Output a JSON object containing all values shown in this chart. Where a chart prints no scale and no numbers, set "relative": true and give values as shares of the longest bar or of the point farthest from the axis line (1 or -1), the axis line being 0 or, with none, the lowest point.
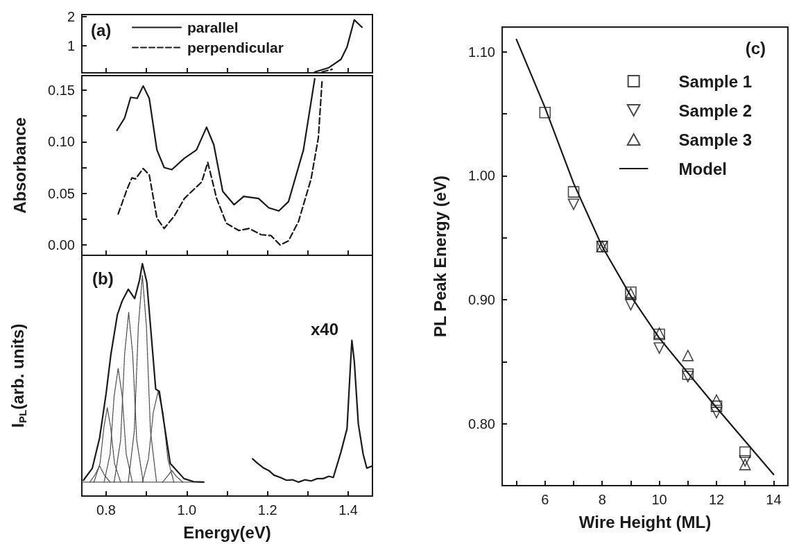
{
  "chart_data": [
    {
      "type": "line",
      "title": "(a)",
      "xlim": [
        0.74,
        1.46
      ],
      "xticks": [
        {
          "value": 0.8,
          "label": null
        },
        {
          "value": 0.9,
          "label": null
        },
        {
          "value": 1.0,
          "label": null
        },
        {
          "value": 1.1,
          "label": null
        },
        {
          "value": 1.2,
          "label": null
        },
        {
          "value": 1.3,
          "label": null
        },
        {
          "value": 1.4,
          "label": null
        }
      ],
      "ylim": [
        0.08,
        2.06
      ],
      "yticks": [
        1,
        2
      ],
      "tick_labels": "y",
      "legend": "top left",
      "series": [
        {
          "name": "parallel",
          "color": "#1a1a1a",
          "line_style": "solid",
          "marker": "none",
          "x": [
            1.317,
            1.351,
            1.382,
            1.397,
            1.415,
            1.434
          ],
          "values": [
            0.11,
            0.25,
            0.54,
            0.96,
            1.88,
            1.63
          ]
        },
        {
          "name": "perpendicular",
          "color": "#1a1a1a",
          "line_style": "dashed",
          "marker": "none",
          "x": [
            1.335,
            1.36
          ],
          "values": [
            0.11,
            0.2
          ]
        }
      ]
    },
    {
      "type": "line",
      "ylabel": "Absorbance",
      "xlim": [
        0.74,
        1.46
      ],
      "xticks": [
        {
          "value": 0.8,
          "label": null
        },
        {
          "value": 0.9,
          "label": null
        },
        {
          "value": 1.0,
          "label": null
        },
        {
          "value": 1.1,
          "label": null
        },
        {
          "value": 1.2,
          "label": null
        },
        {
          "value": 1.3,
          "label": null
        },
        {
          "value": 1.4,
          "label": null
        }
      ],
      "ylim": [
        -0.01,
        0.164
      ],
      "yticks": [
        {
          "value": 0,
          "label": "0.00"
        },
        {
          "value": 0.025,
          "label": null
        },
        {
          "value": 0.05,
          "label": "0.05"
        },
        {
          "value": 0.075,
          "label": null
        },
        {
          "value": 0.1,
          "label": "0.10"
        },
        {
          "value": 0.125,
          "label": null
        },
        {
          "value": 0.15,
          "label": "0.15"
        }
      ],
      "tick_labels": "y",
      "series": [
        {
          "color": "#1a1a1a",
          "line_style": "solid",
          "marker": "none",
          "x": [
            0.827,
            0.846,
            0.861,
            0.877,
            0.892,
            0.907,
            0.926,
            0.944,
            0.963,
            0.994,
            1.024,
            1.049,
            1.067,
            1.089,
            1.117,
            1.141,
            1.178,
            1.203,
            1.228,
            1.252,
            1.289,
            1.317
          ],
          "values": [
            0.111,
            0.123,
            0.143,
            0.142,
            0.154,
            0.142,
            0.092,
            0.075,
            0.073,
            0.084,
            0.092,
            0.114,
            0.097,
            0.052,
            0.039,
            0.047,
            0.045,
            0.036,
            0.033,
            0.042,
            0.092,
            0.161
          ]
        },
        {
          "color": "#1a1a1a",
          "line_style": "dashed",
          "marker": "none",
          "x": [
            0.83,
            0.852,
            0.864,
            0.873,
            0.892,
            0.907,
            0.926,
            0.944,
            0.969,
            0.994,
            1.018,
            1.037,
            1.052,
            1.074,
            1.098,
            1.129,
            1.154,
            1.184,
            1.209,
            1.231,
            1.252,
            1.277,
            1.308,
            1.326,
            1.335
          ],
          "values": [
            0.03,
            0.054,
            0.065,
            0.064,
            0.074,
            0.068,
            0.026,
            0.016,
            0.028,
            0.045,
            0.054,
            0.061,
            0.08,
            0.045,
            0.021,
            0.014,
            0.016,
            0.01,
            0.009,
            0.0,
            0.004,
            0.023,
            0.064,
            0.104,
            0.158
          ]
        }
      ]
    },
    {
      "type": "line",
      "title": "(b)",
      "relative": true,
      "xlabel": "Energy(eV)",
      "ylabel": "I$_{PL}$(arb. units)",
      "xlim": [
        0.74,
        1.46
      ],
      "xticks": [
        0.8,
        {
          "value": 0.9,
          "label": null
        },
        {
          "value": 1.0,
          "label": "1.0"
        },
        {
          "value": 1.1,
          "label": null
        },
        1.2,
        {
          "value": 1.3,
          "label": null
        },
        1.4
      ],
      "tick_labels": "x",
      "annotations": [
        "x40"
      ],
      "series": [
        {
          "color": "#1a1a1a",
          "line_style": "solid",
          "marker": "none",
          "x": [
            0.744,
            0.766,
            0.784,
            0.8,
            0.812,
            0.828,
            0.84,
            0.855,
            0.871,
            0.883,
            0.89,
            0.901,
            0.914,
            0.923,
            0.932,
            0.944,
            0.959,
            0.975,
            0.993,
            1.017,
            1.042
          ],
          "values": [
            0.068,
            0.12,
            0.25,
            0.44,
            0.61,
            0.78,
            0.84,
            0.89,
            0.85,
            0.93,
            1.0,
            0.92,
            0.65,
            0.46,
            0.45,
            0.31,
            0.14,
            0.11,
            0.075,
            0.062,
            0.06
          ]
        },
        {
          "color": "#1a1a1a",
          "line_style": "solid",
          "marker": "none",
          "x": [
            1.163,
            1.176,
            1.191,
            1.203,
            1.216,
            1.232,
            1.247,
            1.262,
            1.277,
            1.293,
            1.308,
            1.323,
            1.338,
            1.352,
            1.363,
            1.382,
            1.397,
            1.406,
            1.409,
            1.415,
            1.425,
            1.437,
            1.446,
            1.46
          ],
          "values": [
            0.16,
            0.14,
            0.12,
            0.11,
            0.09,
            0.08,
            0.068,
            0.07,
            0.06,
            0.07,
            0.065,
            0.075,
            0.075,
            0.085,
            0.08,
            0.19,
            0.29,
            0.58,
            0.67,
            0.58,
            0.31,
            0.18,
            0.12,
            0.13
          ]
        },
        {
          "color": "#444444",
          "line_style": "dotted",
          "marker": "none",
          "x": [
            0.74,
            1.04
          ],
          "values": [
            0.06,
            0.06
          ]
        },
        {
          "color": "#444444",
          "line_style": "dotted",
          "marker": "none",
          "x": [
            0.76,
            0.772,
            0.784,
            0.796,
            0.81
          ],
          "values": [
            0.06,
            0.09,
            0.13,
            0.09,
            0.06
          ]
        },
        {
          "color": "#444444",
          "line_style": "dotted",
          "marker": "none",
          "x": [
            0.77,
            0.785,
            0.795,
            0.803,
            0.811,
            0.821,
            0.836
          ],
          "values": [
            0.06,
            0.14,
            0.3,
            0.38,
            0.3,
            0.14,
            0.06
          ]
        },
        {
          "color": "#444444",
          "line_style": "dotted",
          "marker": "none",
          "x": [
            0.795,
            0.81,
            0.82,
            0.83,
            0.84,
            0.85,
            0.865
          ],
          "values": [
            0.06,
            0.18,
            0.43,
            0.55,
            0.43,
            0.18,
            0.06
          ]
        },
        {
          "color": "#444444",
          "line_style": "dotted",
          "marker": "none",
          "x": [
            0.82,
            0.836,
            0.846,
            0.856,
            0.866,
            0.876,
            0.892
          ],
          "values": [
            0.06,
            0.24,
            0.61,
            0.79,
            0.61,
            0.24,
            0.06
          ]
        },
        {
          "color": "#444444",
          "line_style": "dotted",
          "marker": "none",
          "x": [
            0.855,
            0.87,
            0.88,
            0.89,
            0.9,
            0.91,
            0.925
          ],
          "values": [
            0.06,
            0.28,
            0.73,
            0.95,
            0.73,
            0.28,
            0.06
          ]
        },
        {
          "color": "#444444",
          "line_style": "dotted",
          "marker": "none",
          "x": [
            0.89,
            0.905,
            0.917,
            0.929,
            0.941,
            0.953,
            0.968
          ],
          "values": [
            0.06,
            0.16,
            0.36,
            0.45,
            0.36,
            0.16,
            0.06
          ]
        },
        {
          "color": "#444444",
          "line_style": "dotted",
          "marker": "none",
          "x": [
            0.94,
            0.952,
            0.963,
            0.974,
            0.99
          ],
          "values": [
            0.06,
            0.085,
            0.11,
            0.085,
            0.06
          ]
        }
      ]
    },
    {
      "type": "scatter",
      "title": "(c)",
      "xlabel": "Wire Height (ML)",
      "ylabel": "PL Peak Energy (eV)",
      "xlim": [
        4.5,
        14.5
      ],
      "xticks": [
        {
          "value": 5,
          "label": null
        },
        6,
        {
          "value": 7,
          "label": null
        },
        8,
        {
          "value": 9,
          "label": null
        },
        10,
        {
          "value": 11,
          "label": null
        },
        12,
        {
          "value": 13,
          "label": null
        },
        14
      ],
      "ylim": [
        0.75,
        1.12
      ],
      "yticks": [
        {
          "value": 0.8,
          "label": "0.80"
        },
        {
          "value": 0.85,
          "label": null
        },
        {
          "value": 0.9,
          "label": "0.90"
        },
        {
          "value": 0.95,
          "label": null
        },
        {
          "value": 1.0,
          "label": "1.00"
        },
        {
          "value": 1.05,
          "label": null
        },
        {
          "value": 1.1,
          "label": "1.10"
        }
      ],
      "legend": "top right",
      "series": [
        {
          "name": "Sample 1",
          "color": "#1a1a1a",
          "marker": "square",
          "x": [
            6,
            7,
            8,
            9,
            10,
            11,
            12,
            13
          ],
          "values": [
            1.051,
            0.987,
            0.943,
            0.906,
            0.872,
            0.84,
            0.814,
            0.777
          ]
        },
        {
          "name": "Sample 2",
          "color": "#1a1a1a",
          "marker": "triangle-down",
          "x": [
            7,
            8,
            9,
            10,
            11,
            12,
            13
          ],
          "values": [
            0.977,
            0.943,
            0.896,
            0.861,
            0.838,
            0.809,
            0.77
          ]
        },
        {
          "name": "Sample 3",
          "color": "#1a1a1a",
          "marker": "triangle",
          "x": [
            8,
            9,
            10,
            11,
            12,
            13
          ],
          "values": [
            0.943,
            0.905,
            0.873,
            0.855,
            0.819,
            0.767
          ]
        },
        {
          "name": "Model",
          "type": "line",
          "color": "#1a1a1a",
          "line_style": "solid",
          "marker": "none",
          "x": [
            5,
            6,
            7,
            8,
            9,
            10,
            11,
            12,
            13,
            14
          ],
          "values": [
            1.11,
            1.055,
            0.994,
            0.943,
            0.903,
            0.869,
            0.841,
            0.813,
            0.786,
            0.759
          ]
        }
      ]
    }
  ]
}
